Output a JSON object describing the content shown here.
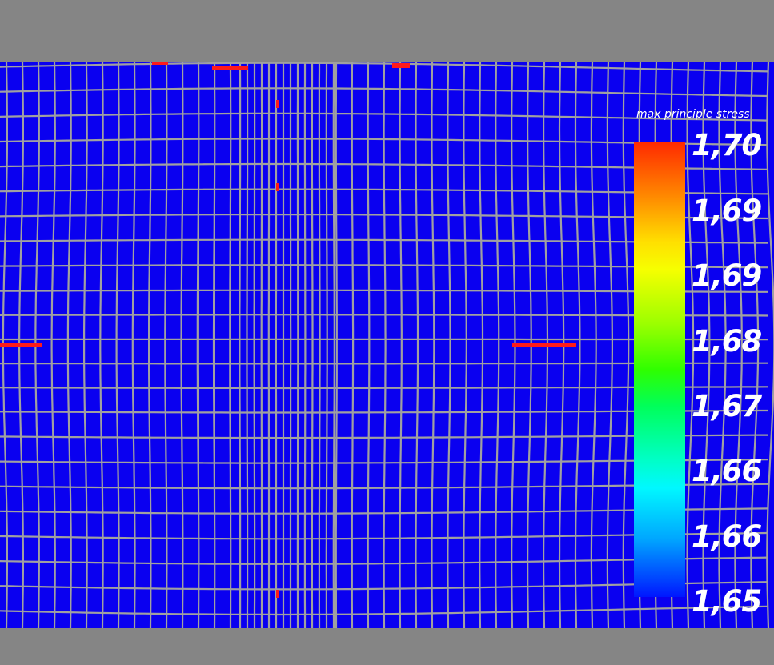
{
  "legend": {
    "title": "max principle stress",
    "ticks": [
      "1,70",
      "1,69",
      "1,69",
      "1,68",
      "1,67",
      "1,66",
      "1,66",
      "1,65"
    ],
    "gradient_colors": [
      "#ff2a00",
      "#ffe000",
      "#2fff00",
      "#00f8ff",
      "#0016ff"
    ]
  },
  "colors": {
    "background": "#858585",
    "field": "#0a00f0",
    "mesh_lines": "#a0a0a0",
    "hotspot": "#ff1a1a"
  }
}
